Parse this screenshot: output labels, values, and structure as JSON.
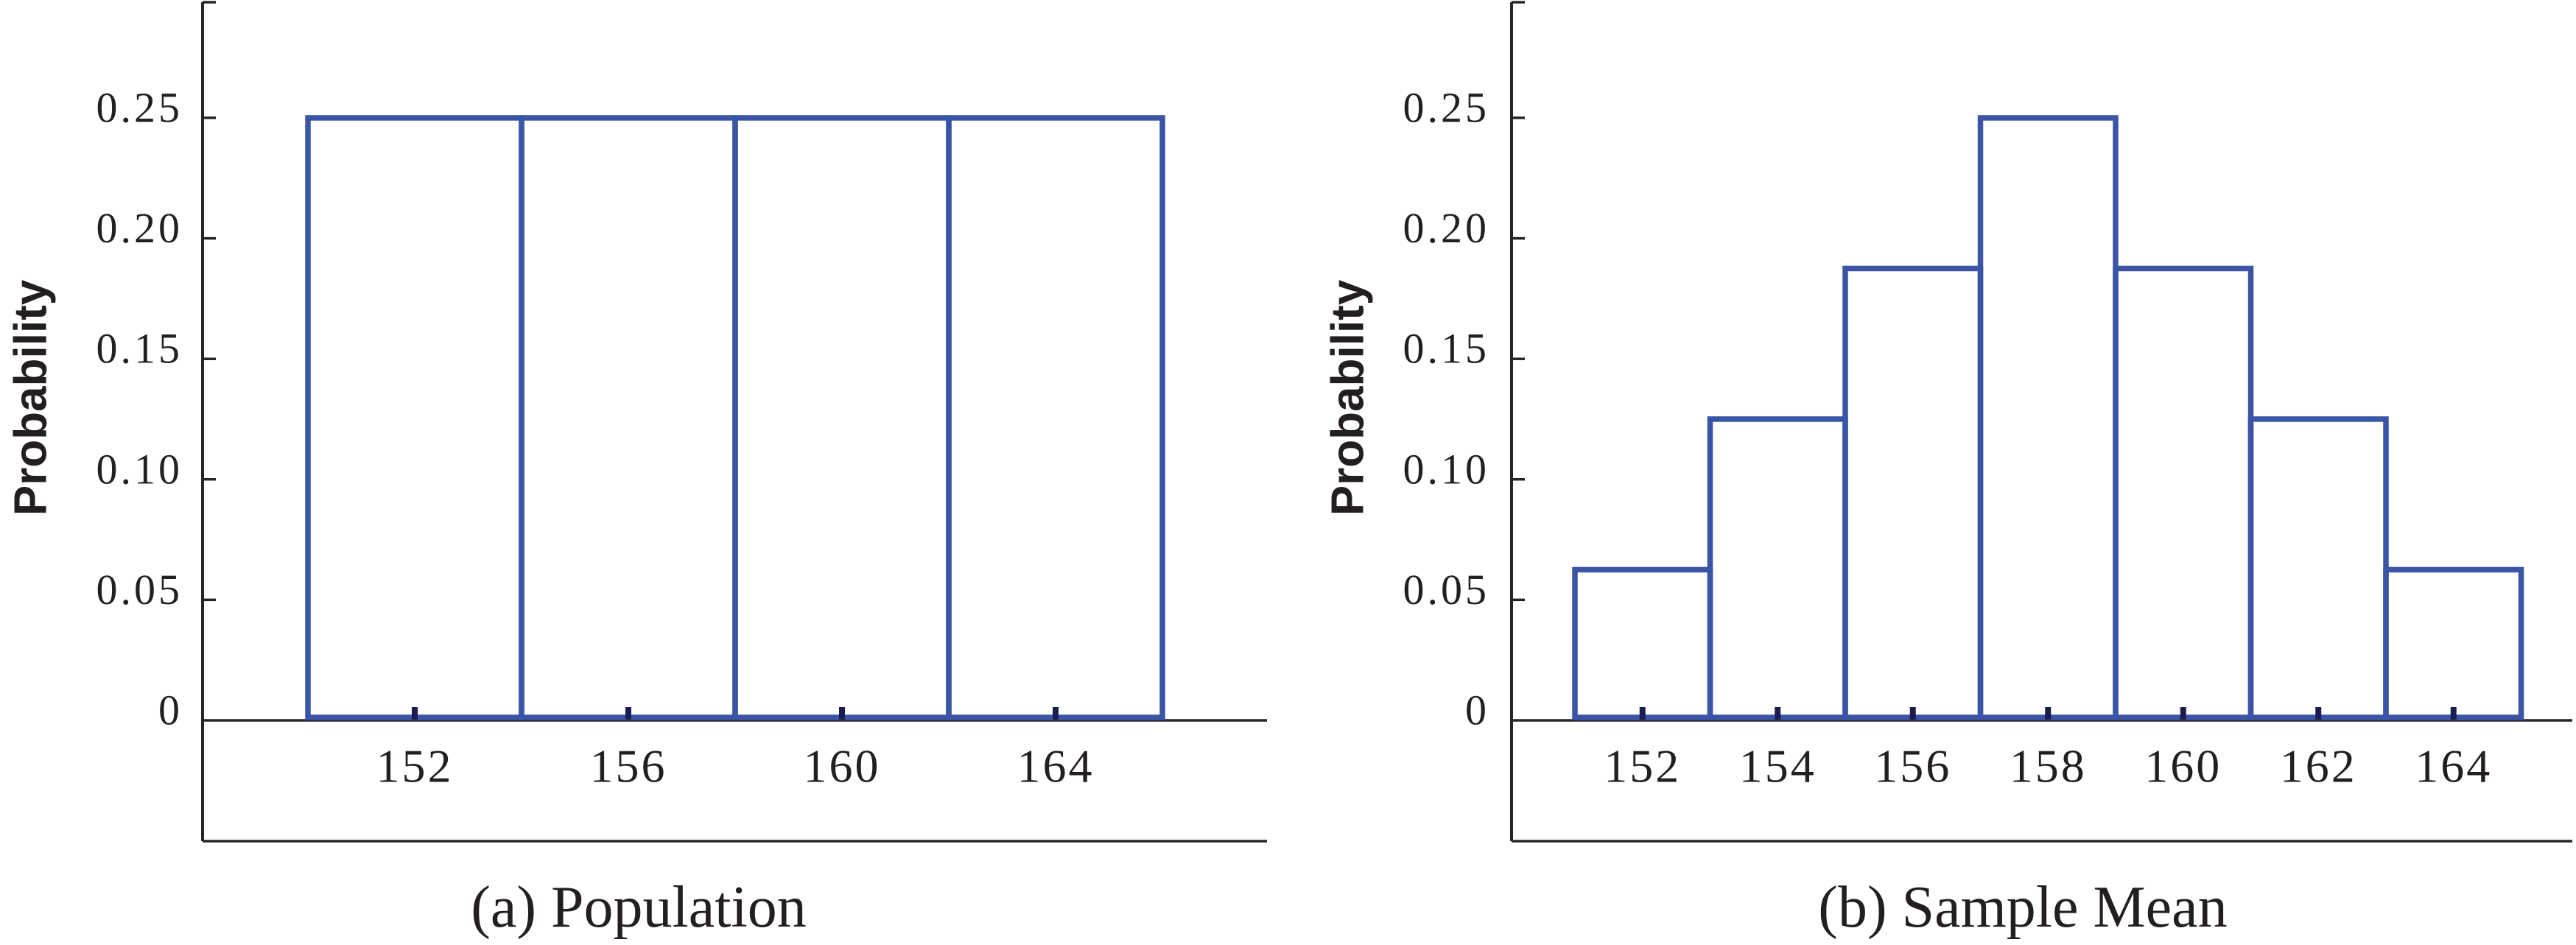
{
  "figure": {
    "background": "#ffffff",
    "shared_y_axis_label": "Probability",
    "colors": {
      "bar_outline": "#3a55a5",
      "axis_line": "#262626",
      "x_tick_mark": "#1b1c50",
      "text": "#231f20"
    }
  },
  "chart_data": [
    {
      "type": "bar",
      "subtype": "outlined-histogram",
      "title": "(a) Population",
      "ylabel": "Probability",
      "xlabel": "",
      "bin_edges": [
        150,
        154,
        158,
        162,
        166
      ],
      "values": [
        0.25,
        0.25,
        0.25,
        0.25
      ],
      "x_ticks": [
        152,
        156,
        160,
        164
      ],
      "x_tick_labels": [
        "152",
        "156",
        "160",
        "164"
      ],
      "y_ticks": [
        0,
        0.05,
        0.1,
        0.15,
        0.2,
        0.25
      ],
      "y_tick_labels": [
        "0",
        "0.05",
        "0.10",
        "0.15",
        "0.20",
        "0.25"
      ],
      "ylim": [
        0,
        0.3
      ],
      "xlim": [
        148,
        168
      ],
      "grid": false,
      "legend": null
    },
    {
      "type": "bar",
      "subtype": "outlined-histogram",
      "title": "(b) Sample Mean",
      "ylabel": "Probability",
      "xlabel": "",
      "bin_edges": [
        151,
        153,
        155,
        157,
        159,
        161,
        163,
        165
      ],
      "values": [
        0.0625,
        0.125,
        0.1875,
        0.25,
        0.1875,
        0.125,
        0.0625
      ],
      "x_ticks": [
        152,
        154,
        156,
        158,
        160,
        162,
        164
      ],
      "x_tick_labels": [
        "152",
        "154",
        "156",
        "158",
        "160",
        "162",
        "164"
      ],
      "y_ticks": [
        0,
        0.05,
        0.1,
        0.15,
        0.2,
        0.25
      ],
      "y_tick_labels": [
        "0",
        "0.05",
        "0.10",
        "0.15",
        "0.20",
        "0.25"
      ],
      "ylim": [
        0,
        0.3
      ],
      "xlim": [
        150,
        166
      ],
      "grid": false,
      "legend": null
    }
  ]
}
